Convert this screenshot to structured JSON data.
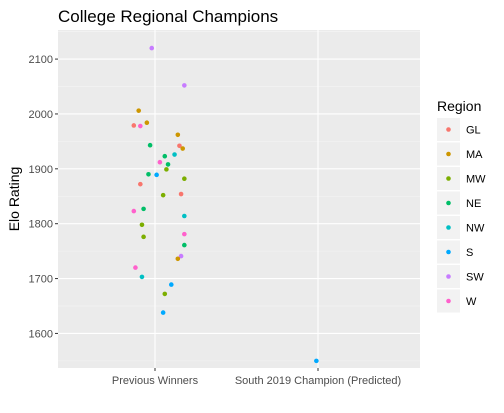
{
  "chart_data": {
    "type": "scatter",
    "title": "College Regional Champions",
    "xlabel": "",
    "ylabel": "Elo Rating",
    "categories": [
      "Previous Winners",
      "South 2019 Champion (Predicted)"
    ],
    "ylim": [
      1537,
      2153
    ],
    "yticks": [
      1600,
      1700,
      1800,
      1900,
      2000,
      2100
    ],
    "grid": true,
    "legend": {
      "title": "Region",
      "position": "right",
      "entries": [
        {
          "name": "GL",
          "color": "#F8766D"
        },
        {
          "name": "MA",
          "color": "#CD9600"
        },
        {
          "name": "MW",
          "color": "#7CAE00"
        },
        {
          "name": "NE",
          "color": "#00BE67"
        },
        {
          "name": "NW",
          "color": "#00BFC4"
        },
        {
          "name": "S",
          "color": "#00A9FF"
        },
        {
          "name": "SW",
          "color": "#C77CFF"
        },
        {
          "name": "W",
          "color": "#FF61CC"
        }
      ]
    },
    "points": [
      {
        "x": "Previous Winners",
        "jitter": -0.02,
        "y": 2120,
        "region": "SW"
      },
      {
        "x": "Previous Winners",
        "jitter": 0.18,
        "y": 2052,
        "region": "SW"
      },
      {
        "x": "Previous Winners",
        "jitter": -0.1,
        "y": 2006,
        "region": "MA"
      },
      {
        "x": "Previous Winners",
        "jitter": -0.05,
        "y": 1984,
        "region": "MA"
      },
      {
        "x": "Previous Winners",
        "jitter": -0.13,
        "y": 1979,
        "region": "GL"
      },
      {
        "x": "Previous Winners",
        "jitter": -0.09,
        "y": 1978,
        "region": "W"
      },
      {
        "x": "Previous Winners",
        "jitter": 0.14,
        "y": 1962,
        "region": "MA"
      },
      {
        "x": "Previous Winners",
        "jitter": 0.15,
        "y": 1942,
        "region": "GL"
      },
      {
        "x": "Previous Winners",
        "jitter": -0.03,
        "y": 1943,
        "region": "NE"
      },
      {
        "x": "Previous Winners",
        "jitter": 0.17,
        "y": 1937,
        "region": "MA"
      },
      {
        "x": "Previous Winners",
        "jitter": 0.12,
        "y": 1926,
        "region": "NW"
      },
      {
        "x": "Previous Winners",
        "jitter": 0.06,
        "y": 1923,
        "region": "NE"
      },
      {
        "x": "Previous Winners",
        "jitter": 0.03,
        "y": 1912,
        "region": "W"
      },
      {
        "x": "Previous Winners",
        "jitter": 0.08,
        "y": 1908,
        "region": "NE"
      },
      {
        "x": "Previous Winners",
        "jitter": 0.07,
        "y": 1899,
        "region": "MW"
      },
      {
        "x": "Previous Winners",
        "jitter": -0.04,
        "y": 1890,
        "region": "NE"
      },
      {
        "x": "Previous Winners",
        "jitter": 0.01,
        "y": 1889,
        "region": "S"
      },
      {
        "x": "Previous Winners",
        "jitter": 0.18,
        "y": 1882,
        "region": "MW"
      },
      {
        "x": "Previous Winners",
        "jitter": -0.09,
        "y": 1872,
        "region": "GL"
      },
      {
        "x": "Previous Winners",
        "jitter": 0.05,
        "y": 1852,
        "region": "MW"
      },
      {
        "x": "Previous Winners",
        "jitter": 0.16,
        "y": 1854,
        "region": "GL"
      },
      {
        "x": "Previous Winners",
        "jitter": -0.07,
        "y": 1827,
        "region": "NE"
      },
      {
        "x": "Previous Winners",
        "jitter": -0.13,
        "y": 1823,
        "region": "W"
      },
      {
        "x": "Previous Winners",
        "jitter": 0.18,
        "y": 1814,
        "region": "NW"
      },
      {
        "x": "Previous Winners",
        "jitter": -0.08,
        "y": 1798,
        "region": "MW"
      },
      {
        "x": "Previous Winners",
        "jitter": 0.18,
        "y": 1781,
        "region": "W"
      },
      {
        "x": "Previous Winners",
        "jitter": -0.07,
        "y": 1776,
        "region": "MW"
      },
      {
        "x": "Previous Winners",
        "jitter": 0.18,
        "y": 1761,
        "region": "NE"
      },
      {
        "x": "Previous Winners",
        "jitter": 0.16,
        "y": 1741,
        "region": "SW"
      },
      {
        "x": "Previous Winners",
        "jitter": 0.14,
        "y": 1736,
        "region": "MA"
      },
      {
        "x": "Previous Winners",
        "jitter": -0.12,
        "y": 1720,
        "region": "W"
      },
      {
        "x": "Previous Winners",
        "jitter": -0.08,
        "y": 1703,
        "region": "NW"
      },
      {
        "x": "Previous Winners",
        "jitter": 0.1,
        "y": 1689,
        "region": "S"
      },
      {
        "x": "Previous Winners",
        "jitter": 0.06,
        "y": 1672,
        "region": "MW"
      },
      {
        "x": "Previous Winners",
        "jitter": 0.05,
        "y": 1638,
        "region": "S"
      },
      {
        "x": "South 2019 Champion (Predicted)",
        "jitter": -0.01,
        "y": 1550,
        "region": "S"
      }
    ]
  }
}
